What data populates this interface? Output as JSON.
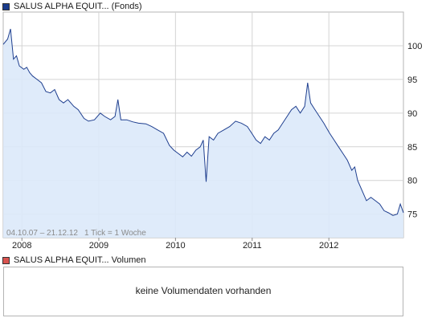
{
  "colors": {
    "line": "#1f3f8f",
    "area": "#dce9f9",
    "price_swatch": "#1a3c8c",
    "volume_swatch": "#d9534f",
    "grid": "#d4d4d4",
    "frame": "#b4b4b4"
  },
  "price_legend": {
    "label": "SALUS ALPHA EQUIT... (Fonds)",
    "icon": "blue-square-icon"
  },
  "volume_legend": {
    "label": "SALUS ALPHA EQUIT... Volumen",
    "icon": "red-square-icon"
  },
  "range_info": {
    "dates": "04.10.07 – 21.12.12",
    "tick_info": "1 Tick = 1 Woche"
  },
  "volume_panel": {
    "message": "keine Volumendaten vorhanden"
  },
  "chart_data": {
    "type": "area",
    "title": "SALUS ALPHA EQUIT... (Fonds)",
    "x_tick_labels": [
      "2008",
      "2009",
      "2010",
      "2011",
      "2012"
    ],
    "y_tick_labels": [
      "75",
      "80",
      "85",
      "90",
      "95",
      "100"
    ],
    "x_range": [
      "2007-10-04",
      "2012-12-21"
    ],
    "ylim": [
      71.5,
      105
    ],
    "grid": true,
    "legend": "top-left",
    "series": [
      {
        "points": [
          [
            "2007-10-04",
            100.2
          ],
          [
            "2007-10-25",
            101.0
          ],
          [
            "2007-11-08",
            102.5
          ],
          [
            "2007-11-22",
            98.0
          ],
          [
            "2007-12-06",
            98.5
          ],
          [
            "2007-12-20",
            97.0
          ],
          [
            "2008-01-10",
            96.5
          ],
          [
            "2008-01-24",
            96.8
          ],
          [
            "2008-02-07",
            96.0
          ],
          [
            "2008-02-21",
            95.5
          ],
          [
            "2008-03-13",
            95.0
          ],
          [
            "2008-04-03",
            94.5
          ],
          [
            "2008-04-24",
            93.2
          ],
          [
            "2008-05-15",
            93.0
          ],
          [
            "2008-06-05",
            93.5
          ],
          [
            "2008-06-26",
            92.0
          ],
          [
            "2008-07-17",
            91.5
          ],
          [
            "2008-08-07",
            92.0
          ],
          [
            "2008-09-04",
            91.0
          ],
          [
            "2008-09-25",
            90.5
          ],
          [
            "2008-10-23",
            89.2
          ],
          [
            "2008-11-13",
            88.8
          ],
          [
            "2008-12-11",
            89.0
          ],
          [
            "2009-01-08",
            90.0
          ],
          [
            "2009-01-29",
            89.5
          ],
          [
            "2009-02-26",
            89.0
          ],
          [
            "2009-03-19",
            89.5
          ],
          [
            "2009-04-02",
            92.0
          ],
          [
            "2009-04-16",
            89.0
          ],
          [
            "2009-05-14",
            89.0
          ],
          [
            "2009-06-11",
            88.7
          ],
          [
            "2009-07-09",
            88.5
          ],
          [
            "2009-08-13",
            88.4
          ],
          [
            "2009-09-10",
            88.0
          ],
          [
            "2009-10-08",
            87.5
          ],
          [
            "2009-11-05",
            87.0
          ],
          [
            "2009-12-03",
            85.2
          ],
          [
            "2009-12-24",
            84.5
          ],
          [
            "2010-01-14",
            84.0
          ],
          [
            "2010-02-04",
            83.5
          ],
          [
            "2010-02-25",
            84.2
          ],
          [
            "2010-03-18",
            83.6
          ],
          [
            "2010-04-08",
            84.5
          ],
          [
            "2010-04-29",
            85.0
          ],
          [
            "2010-05-13",
            86.0
          ],
          [
            "2010-05-27",
            79.8
          ],
          [
            "2010-06-10",
            86.5
          ],
          [
            "2010-07-01",
            86.0
          ],
          [
            "2010-07-22",
            87.0
          ],
          [
            "2010-08-19",
            87.5
          ],
          [
            "2010-09-16",
            88.0
          ],
          [
            "2010-10-14",
            88.8
          ],
          [
            "2010-11-11",
            88.5
          ],
          [
            "2010-12-09",
            88.0
          ],
          [
            "2010-12-30",
            87.0
          ],
          [
            "2011-01-20",
            86.0
          ],
          [
            "2011-02-10",
            85.5
          ],
          [
            "2011-03-03",
            86.5
          ],
          [
            "2011-03-24",
            86.0
          ],
          [
            "2011-04-14",
            87.0
          ],
          [
            "2011-05-05",
            87.5
          ],
          [
            "2011-05-26",
            88.5
          ],
          [
            "2011-06-16",
            89.5
          ],
          [
            "2011-07-07",
            90.5
          ],
          [
            "2011-07-28",
            91.0
          ],
          [
            "2011-08-18",
            90.0
          ],
          [
            "2011-09-08",
            91.0
          ],
          [
            "2011-09-22",
            94.5
          ],
          [
            "2011-10-06",
            91.5
          ],
          [
            "2011-10-27",
            90.5
          ],
          [
            "2011-11-17",
            89.5
          ],
          [
            "2011-12-08",
            88.5
          ],
          [
            "2012-01-05",
            87.0
          ],
          [
            "2012-01-26",
            86.0
          ],
          [
            "2012-02-16",
            85.0
          ],
          [
            "2012-03-08",
            84.0
          ],
          [
            "2012-03-29",
            83.0
          ],
          [
            "2012-04-19",
            81.5
          ],
          [
            "2012-05-03",
            82.0
          ],
          [
            "2012-05-17",
            80.0
          ],
          [
            "2012-06-07",
            78.5
          ],
          [
            "2012-06-28",
            77.0
          ],
          [
            "2012-07-19",
            77.5
          ],
          [
            "2012-08-09",
            77.0
          ],
          [
            "2012-08-30",
            76.5
          ],
          [
            "2012-09-20",
            75.5
          ],
          [
            "2012-10-11",
            75.2
          ],
          [
            "2012-11-01",
            74.8
          ],
          [
            "2012-11-22",
            75.0
          ],
          [
            "2012-12-06",
            76.5
          ],
          [
            "2012-12-21",
            75.2
          ]
        ]
      }
    ]
  }
}
